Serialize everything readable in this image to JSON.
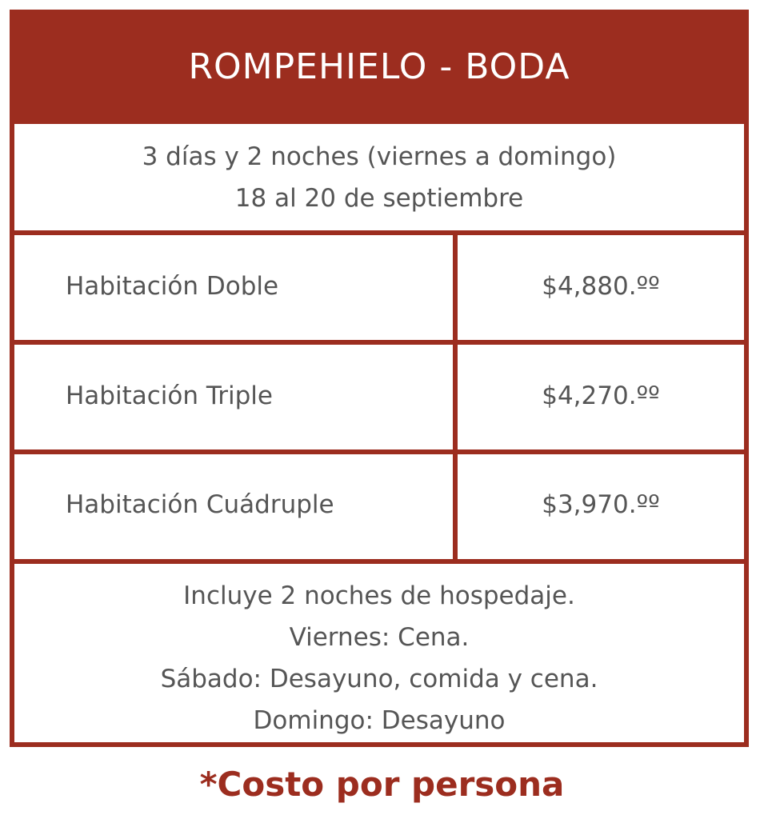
{
  "title": "ROMPEHIELO - BODA",
  "dates": {
    "line1": "3 días y 2 noches (viernes a domingo)",
    "line2": "18 al 20 de septiembre"
  },
  "rooms": [
    {
      "label": "Habitación Doble",
      "price": "$4,880.ºº"
    },
    {
      "label": "Habitación Triple",
      "price": "$4,270.ºº"
    },
    {
      "label": "Habitación Cuádruple",
      "price": "$3,970.ºº"
    }
  ],
  "includes": [
    "Incluye 2 noches de hospedaje.",
    "Viernes: Cena.",
    "Sábado: Desayuno, comida y cena.",
    "Domingo: Desayuno"
  ],
  "footnote": "*Costo por persona",
  "colors": {
    "accent": "#9c2d1f",
    "text": "#555555"
  }
}
